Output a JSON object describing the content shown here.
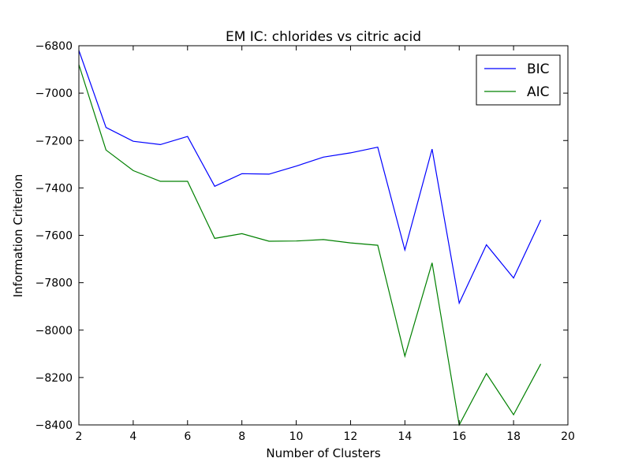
{
  "chart_data": {
    "type": "line",
    "title": "EM IC: chlorides vs citric acid",
    "xlabel": "Number of Clusters",
    "ylabel": "Information Criterion",
    "xlim": [
      2,
      20
    ],
    "ylim": [
      -8400,
      -6800
    ],
    "xticks": [
      2,
      4,
      6,
      8,
      10,
      12,
      14,
      16,
      18,
      20
    ],
    "yticks": [
      -6800,
      -7000,
      -7200,
      -7400,
      -7600,
      -7800,
      -8000,
      -8200,
      -8400
    ],
    "xtick_labels": [
      "2",
      "4",
      "6",
      "8",
      "10",
      "12",
      "14",
      "16",
      "18",
      "20"
    ],
    "ytick_labels": [
      "−6800",
      "−7000",
      "−7200",
      "−7400",
      "−7600",
      "−7800",
      "−8000",
      "−8200",
      "−8400"
    ],
    "grid": false,
    "legend_position": "top-right",
    "x": [
      2,
      3,
      4,
      5,
      6,
      7,
      8,
      9,
      10,
      11,
      12,
      13,
      14,
      15,
      16,
      17,
      18,
      19
    ],
    "series": [
      {
        "name": "BIC",
        "color": "#0000ff",
        "values": [
          -6820,
          -7145,
          -7203,
          -7217,
          -7183,
          -7393,
          -7340,
          -7342,
          -7308,
          -7270,
          -7252,
          -7228,
          -7662,
          -7236,
          -7886,
          -7640,
          -7780,
          -7535
        ]
      },
      {
        "name": "AIC",
        "color": "#008000",
        "values": [
          -6880,
          -7240,
          -7327,
          -7372,
          -7372,
          -7613,
          -7593,
          -7625,
          -7624,
          -7618,
          -7632,
          -7642,
          -8110,
          -7716,
          -8400,
          -8183,
          -8357,
          -8143
        ]
      }
    ]
  }
}
